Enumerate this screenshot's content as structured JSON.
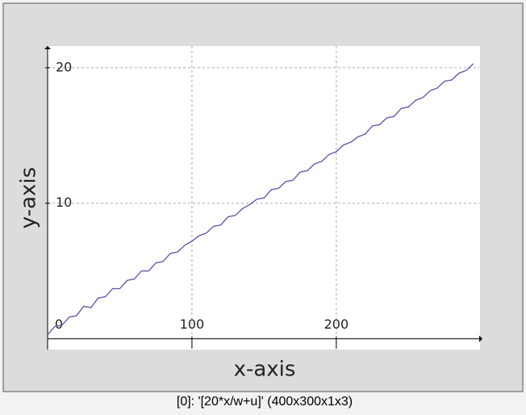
{
  "chart_data": {
    "type": "line",
    "x_label": "x-axis",
    "y_label": "y-axis",
    "caption": "[0]: '[20*x/w+u]' (400x300x1x3)",
    "x": [
      0,
      5,
      10,
      15,
      20,
      25,
      30,
      35,
      40,
      45,
      50,
      55,
      60,
      65,
      70,
      75,
      80,
      85,
      90,
      95,
      100,
      105,
      110,
      115,
      120,
      125,
      130,
      135,
      140,
      145,
      150,
      155,
      160,
      165,
      170,
      175,
      180,
      185,
      190,
      195,
      200,
      205,
      210,
      215,
      220,
      225,
      230,
      235,
      240,
      245,
      250,
      255,
      260,
      265,
      270,
      275,
      280,
      285,
      290,
      295
    ],
    "series": [
      {
        "color": "#5555aa",
        "values": [
          0.3,
          0.9,
          1.0,
          1.6,
          1.7,
          2.4,
          2.3,
          3.0,
          3.1,
          3.7,
          3.7,
          4.3,
          4.4,
          5.0,
          5.0,
          5.6,
          5.7,
          6.3,
          6.4,
          6.9,
          7.2,
          7.6,
          7.8,
          8.3,
          8.4,
          9.0,
          9.1,
          9.6,
          9.9,
          10.3,
          10.4,
          11.0,
          11.1,
          11.6,
          11.7,
          12.3,
          12.4,
          12.9,
          13.1,
          13.6,
          13.8,
          14.3,
          14.5,
          14.9,
          15.1,
          15.7,
          15.8,
          16.3,
          16.4,
          17.0,
          17.1,
          17.6,
          17.8,
          18.3,
          18.5,
          19.0,
          19.1,
          19.6,
          19.8,
          20.3
        ]
      }
    ],
    "xlim": [
      0,
      299
    ],
    "ylim": [
      -0.8,
      21.6
    ],
    "xticks": [
      0,
      100,
      200
    ],
    "yticks": [
      10,
      20
    ],
    "grid": true
  }
}
